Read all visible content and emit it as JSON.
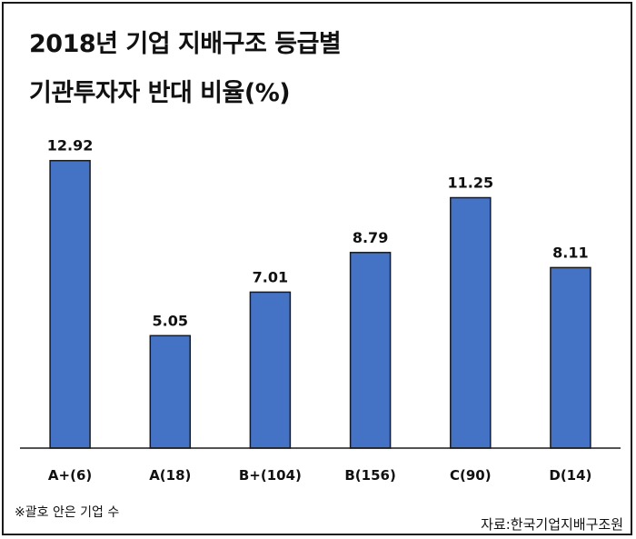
{
  "chart_data": {
    "type": "bar",
    "title_lines": [
      "2018년 기업 지배구조 등급별",
      "기관투자자 반대 비율(%)"
    ],
    "categories": [
      "A+(6)",
      "A(18)",
      "B+(104)",
      "B(156)",
      "C(90)",
      "D(14)"
    ],
    "values": [
      12.92,
      5.05,
      7.01,
      8.79,
      11.25,
      8.11
    ],
    "data_labels": [
      "12.92",
      "5.05",
      "7.01",
      "8.79",
      "11.25",
      "8.11"
    ],
    "ylim": [
      0,
      13.6
    ],
    "grid": false,
    "bar_color": "#4472C4",
    "bar_border_color": "#1a1a1a",
    "note": "※괄호 안은 기업 수",
    "source": "자료:한국기업지배구조원"
  }
}
